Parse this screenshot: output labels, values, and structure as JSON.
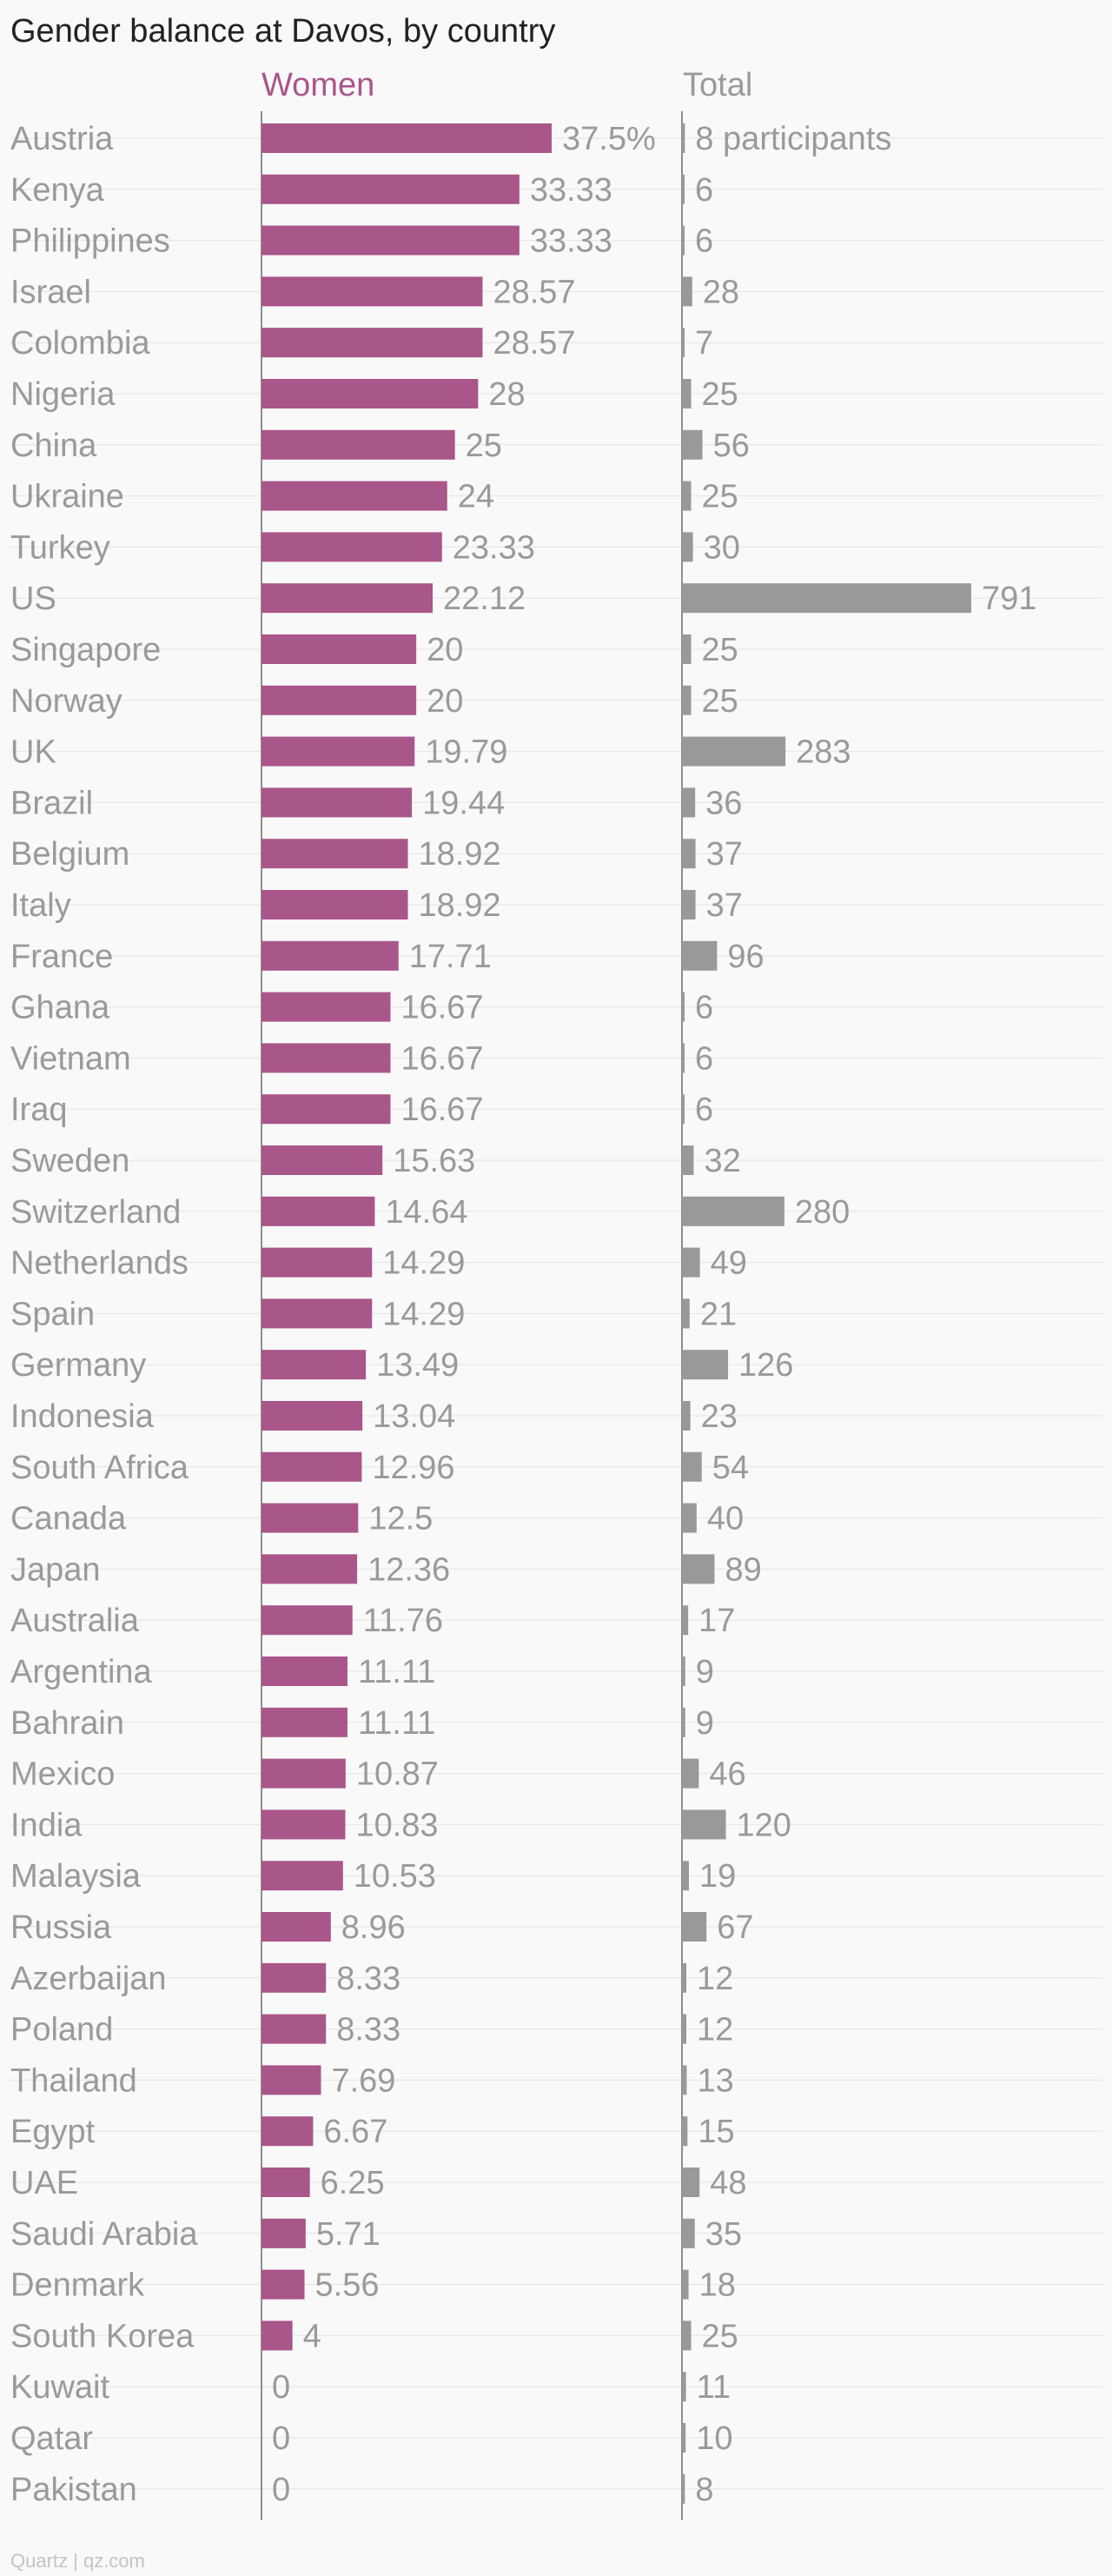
{
  "chart_data": {
    "type": "bar",
    "title": "Gender balance at Davos, by country",
    "source": "Quartz | qz.com",
    "colors": {
      "women": "#a9568a",
      "total": "#999999",
      "labels": "#9a9a9a"
    },
    "categories": [
      "Austria",
      "Kenya",
      "Philippines",
      "Israel",
      "Colombia",
      "Nigeria",
      "China",
      "Ukraine",
      "Turkey",
      "US",
      "Singapore",
      "Norway",
      "UK",
      "Brazil",
      "Belgium",
      "Italy",
      "France",
      "Ghana",
      "Vietnam",
      "Iraq",
      "Sweden",
      "Switzerland",
      "Netherlands",
      "Spain",
      "Germany",
      "Indonesia",
      "South Africa",
      "Canada",
      "Japan",
      "Australia",
      "Argentina",
      "Bahrain",
      "Mexico",
      "India",
      "Malaysia",
      "Russia",
      "Azerbaijan",
      "Poland",
      "Thailand",
      "Egypt",
      "UAE",
      "Saudi Arabia",
      "Denmark",
      "South Korea",
      "Kuwait",
      "Qatar",
      "Pakistan"
    ],
    "series": [
      {
        "name": "Women",
        "unit_suffix_first": "%",
        "xlim": [
          0,
          37.5
        ],
        "values": [
          37.5,
          33.33,
          33.33,
          28.57,
          28.57,
          28,
          25,
          24,
          23.33,
          22.12,
          20,
          20,
          19.79,
          19.44,
          18.92,
          18.92,
          17.71,
          16.67,
          16.67,
          16.67,
          15.63,
          14.64,
          14.29,
          14.29,
          13.49,
          13.04,
          12.96,
          12.5,
          12.36,
          11.76,
          11.11,
          11.11,
          10.87,
          10.83,
          10.53,
          8.96,
          8.33,
          8.33,
          7.69,
          6.67,
          6.25,
          5.71,
          5.56,
          4,
          0,
          0,
          0
        ],
        "labels": [
          "37.5%",
          "33.33",
          "33.33",
          "28.57",
          "28.57",
          "28",
          "25",
          "24",
          "23.33",
          "22.12",
          "20",
          "20",
          "19.79",
          "19.44",
          "18.92",
          "18.92",
          "17.71",
          "16.67",
          "16.67",
          "16.67",
          "15.63",
          "14.64",
          "14.29",
          "14.29",
          "13.49",
          "13.04",
          "12.96",
          "12.5",
          "12.36",
          "11.76",
          "11.11",
          "11.11",
          "10.87",
          "10.83",
          "10.53",
          "8.96",
          "8.33",
          "8.33",
          "7.69",
          "6.67",
          "6.25",
          "5.71",
          "5.56",
          "4",
          "0",
          "0",
          "0"
        ]
      },
      {
        "name": "Total",
        "xlim": [
          0,
          791
        ],
        "values": [
          8,
          6,
          6,
          28,
          7,
          25,
          56,
          25,
          30,
          791,
          25,
          25,
          283,
          36,
          37,
          37,
          96,
          6,
          6,
          6,
          32,
          280,
          49,
          21,
          126,
          23,
          54,
          40,
          89,
          17,
          9,
          9,
          46,
          120,
          19,
          67,
          12,
          12,
          13,
          15,
          48,
          35,
          18,
          25,
          11,
          10,
          8
        ],
        "labels": [
          "8 participants",
          "6",
          "6",
          "28",
          "7",
          "25",
          "56",
          "25",
          "30",
          "791",
          "25",
          "25",
          "283",
          "36",
          "37",
          "37",
          "96",
          "6",
          "6",
          "6",
          "32",
          "280",
          "49",
          "21",
          "126",
          "23",
          "54",
          "40",
          "89",
          "17",
          "9",
          "9",
          "46",
          "120",
          "19",
          "67",
          "12",
          "12",
          "13",
          "15",
          "48",
          "35",
          "18",
          "25",
          "11",
          "10",
          "8"
        ]
      }
    ],
    "legend": "column headers at top",
    "grid": true
  }
}
